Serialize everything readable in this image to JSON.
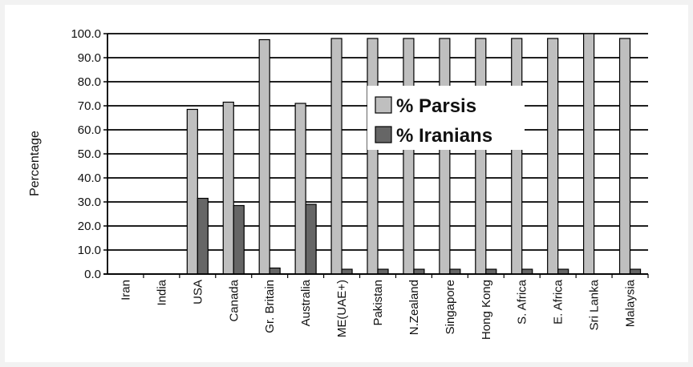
{
  "chart_data": {
    "type": "bar",
    "title": "",
    "xlabel": "",
    "ylabel": "Percentage",
    "ylim": [
      0,
      100
    ],
    "yticks": [
      "0.0",
      "10.0",
      "20.0",
      "30.0",
      "40.0",
      "50.0",
      "60.0",
      "70.0",
      "80.0",
      "90.0",
      "100.0"
    ],
    "grid": true,
    "legend_position": "upper-center",
    "categories": [
      "Iran",
      "India",
      "USA",
      "Canada",
      "Gr. Britain",
      "Australia",
      "ME(UAE+)",
      "Pakistan",
      "N.Zealand",
      "Singapore",
      "Hong Kong",
      "S. Africa",
      "E. Africa",
      "Sri Lanka",
      "Malaysia"
    ],
    "series": [
      {
        "name": "% Parsis",
        "color": "#bfbfbf",
        "values": [
          0,
          0,
          68.5,
          71.5,
          97.5,
          71,
          98,
          98,
          98,
          98,
          98,
          98,
          98,
          100,
          98
        ]
      },
      {
        "name": "% Iranians",
        "color": "#666666",
        "values": [
          0,
          0,
          31.5,
          28.5,
          2.5,
          29,
          2,
          2,
          2,
          2,
          2,
          2,
          2,
          0,
          2
        ]
      }
    ]
  }
}
